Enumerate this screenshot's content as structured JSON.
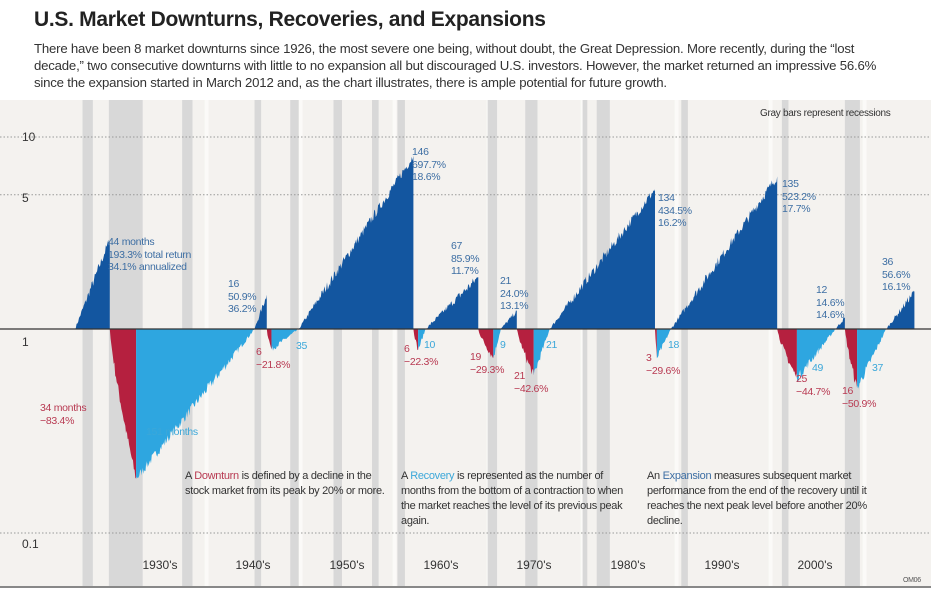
{
  "title": "U.S. Market Downturns, Recoveries, and Expansions",
  "intro": "There have been 8 market downturns since 1926, the most severe one being, without doubt, the Great Depression. More recently, during the “lost decade,” two consecutive downturns with little to no expansion all but discouraged U.S. investors. However, the market returned an impressive 56.6% since the expansion started in March 2012 and, as the chart illustrates, there is ample potential for future growth.",
  "legend_note": "Gray bars represent recessions",
  "code": "OM06",
  "notes": {
    "downturn": {
      "pre": "A ",
      "term": "Downturn",
      "post": " is defined by a decline in the stock market from its peak by 20% or more."
    },
    "recovery": {
      "pre": "A ",
      "term": "Recovery",
      "post": " is represented as the number of months from the bottom of a contraction to when the market reaches the level of its previous peak again."
    },
    "expansion": {
      "pre": "An ",
      "term": "Expansion",
      "post": " measures subsequent market performance from the end of the recovery until it reaches the next peak level before another 20% decline."
    }
  },
  "colors": {
    "expansion": "#1356a0",
    "downturn": "#b5203f",
    "recovery": "#2ea6e0",
    "recession": "#d8d8d8",
    "background": "#f4f2ef"
  },
  "chart_data": {
    "type": "area",
    "yscale": "log",
    "ylim": [
      0.1,
      12
    ],
    "yticks": [
      "10",
      "5",
      "1",
      "0.1"
    ],
    "xticks": [
      "1930's",
      "1940's",
      "1950's",
      "1960's",
      "1970's",
      "1980's",
      "1990's",
      "2000's"
    ],
    "xlim": [
      1926,
      2016
    ],
    "recessions": [
      [
        1926.8,
        1927.9
      ],
      [
        1929.6,
        1933.2
      ],
      [
        1937.4,
        1938.5
      ],
      [
        1945.1,
        1945.8
      ],
      [
        1948.9,
        1949.8
      ],
      [
        1953.5,
        1954.4
      ],
      [
        1957.6,
        1958.3
      ],
      [
        1960.3,
        1961.1
      ],
      [
        1969.9,
        1970.9
      ],
      [
        1973.9,
        1975.2
      ],
      [
        1980.0,
        1980.5
      ],
      [
        1981.5,
        1982.9
      ],
      [
        1990.5,
        1991.2
      ],
      [
        2001.2,
        2001.9
      ],
      [
        2007.9,
        2009.5
      ]
    ],
    "segments": [
      {
        "type": "expansion",
        "start": 1926.0,
        "end": 1929.7,
        "value": 2.933,
        "labels": [
          "44 months",
          "193.3% total return",
          "34.1% annualized"
        ]
      },
      {
        "type": "downturn",
        "start": 1929.7,
        "end": 1932.5,
        "value": 0.166,
        "labels": [
          "34 months",
          "−83.4%"
        ]
      },
      {
        "type": "recovery",
        "start": 1932.5,
        "end": 1945.1,
        "labels": [
          "151 months"
        ]
      },
      {
        "type": "expansion",
        "start": 1945.1,
        "end": 1946.4,
        "value": 1.509,
        "labels": [
          "16",
          "50.9%",
          "36.2%"
        ]
      },
      {
        "type": "downturn",
        "start": 1946.4,
        "end": 1946.9,
        "value": 0.782,
        "labels": [
          "6",
          "−21.8%"
        ]
      },
      {
        "type": "recovery",
        "start": 1946.9,
        "end": 1949.8,
        "labels": [
          "35"
        ]
      },
      {
        "type": "expansion",
        "start": 1949.8,
        "end": 1962.0,
        "value": 7.977,
        "labels": [
          "146",
          "697.7%",
          "18.6%"
        ]
      },
      {
        "type": "downturn",
        "start": 1962.0,
        "end": 1962.5,
        "value": 0.777,
        "labels": [
          "6",
          "−22.3%"
        ]
      },
      {
        "type": "recovery",
        "start": 1962.5,
        "end": 1963.3,
        "labels": [
          "10"
        ]
      },
      {
        "type": "expansion",
        "start": 1963.3,
        "end": 1968.9,
        "value": 1.859,
        "labels": [
          "67",
          "85.9%",
          "11.7%"
        ]
      },
      {
        "type": "downturn",
        "start": 1968.9,
        "end": 1970.5,
        "value": 0.707,
        "labels": [
          "19",
          "−29.3%"
        ]
      },
      {
        "type": "recovery",
        "start": 1970.5,
        "end": 1971.3,
        "labels": [
          "9"
        ]
      },
      {
        "type": "expansion",
        "start": 1971.3,
        "end": 1973.0,
        "value": 1.24,
        "labels": [
          "21",
          "24.0%",
          "13.1%"
        ]
      },
      {
        "type": "downturn",
        "start": 1973.0,
        "end": 1974.8,
        "value": 0.574,
        "labels": [
          "21",
          "−42.6%"
        ]
      },
      {
        "type": "recovery",
        "start": 1974.8,
        "end": 1976.5,
        "labels": [
          "21"
        ]
      },
      {
        "type": "expansion",
        "start": 1976.5,
        "end": 1987.7,
        "value": 5.345,
        "labels": [
          "134",
          "434.5%",
          "16.2%"
        ]
      },
      {
        "type": "downturn",
        "start": 1987.7,
        "end": 1987.9,
        "value": 0.704,
        "labels": [
          "3",
          "−29.6%"
        ]
      },
      {
        "type": "recovery",
        "start": 1987.9,
        "end": 1989.4,
        "labels": [
          "18"
        ]
      },
      {
        "type": "expansion",
        "start": 1989.4,
        "end": 2000.7,
        "value": 6.232,
        "labels": [
          "135",
          "523.2%",
          "17.7%"
        ]
      },
      {
        "type": "downturn",
        "start": 2000.7,
        "end": 2002.8,
        "value": 0.553,
        "labels": [
          "25",
          "−44.7%"
        ]
      },
      {
        "type": "recovery",
        "start": 2002.8,
        "end": 2006.9,
        "labels": [
          "49"
        ]
      },
      {
        "type": "expansion",
        "start": 2006.9,
        "end": 2007.9,
        "value": 1.146,
        "labels": [
          "12",
          "14.6%",
          "14.6%"
        ]
      },
      {
        "type": "downturn",
        "start": 2007.9,
        "end": 2009.2,
        "value": 0.491,
        "labels": [
          "16",
          "−50.9%"
        ]
      },
      {
        "type": "recovery",
        "start": 2009.2,
        "end": 2012.3,
        "labels": [
          "37"
        ]
      },
      {
        "type": "expansion",
        "start": 2012.3,
        "end": 2015.3,
        "value": 1.566,
        "labels": [
          "36",
          "56.6%",
          "16.1%"
        ]
      }
    ]
  }
}
